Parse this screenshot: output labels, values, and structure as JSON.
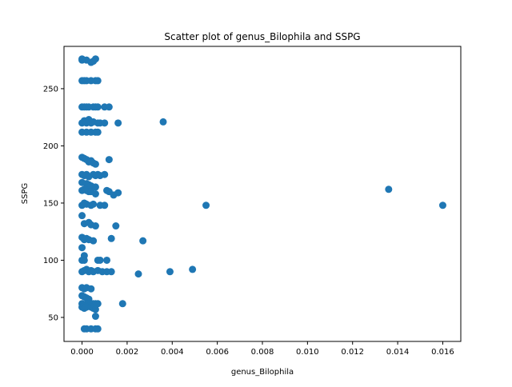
{
  "chart_data": {
    "type": "scatter",
    "title": "Scatter plot of genus_Bilophila and SSPG",
    "xlabel": "genus_Bilophila",
    "ylabel": "SSPG",
    "xlim": [
      -0.0008,
      0.0168
    ],
    "ylim": [
      29,
      287
    ],
    "x_ticks": [
      0.0,
      0.002,
      0.004,
      0.006,
      0.008,
      0.01,
      0.012,
      0.014,
      0.016
    ],
    "x_tick_labels": [
      "0.000",
      "0.002",
      "0.004",
      "0.006",
      "0.008",
      "0.010",
      "0.012",
      "0.014",
      "0.016"
    ],
    "y_ticks": [
      50,
      100,
      150,
      200,
      250
    ],
    "y_tick_labels": [
      "50",
      "100",
      "150",
      "200",
      "250"
    ],
    "grid": false,
    "marker_color": "#1f77b4",
    "series": [
      {
        "x": [
          0.0,
          0.0002,
          0.0004,
          0.0,
          0.0005,
          0.0006,
          0.0,
          0.0001,
          0.0002,
          0.0004,
          0.0006,
          0.0007,
          0.0,
          0.0001,
          0.0002,
          0.0003,
          0.0005,
          0.0006,
          0.0007,
          0.001,
          0.0012,
          0.0,
          0.0001,
          0.0002,
          0.0003,
          0.0004,
          0.0005,
          0.0007,
          0.0008,
          0.001,
          0.0016,
          0.0036,
          0.0,
          0.0002,
          0.0004,
          0.0006,
          0.0007,
          0.0,
          0.0001,
          0.0002,
          0.0003,
          0.0004,
          0.0005,
          0.0006,
          0.0012,
          0.0,
          0.0001,
          0.0002,
          0.0003,
          0.0005,
          0.0006,
          0.0007,
          0.0008,
          0.001,
          0.0,
          0.0002,
          0.0003,
          0.0004,
          0.0006,
          0.0,
          0.0001,
          0.0002,
          0.0003,
          0.0004,
          0.0006,
          0.0011,
          0.0012,
          0.0014,
          0.0016,
          0.0136,
          0.0,
          0.0001,
          0.0002,
          0.0004,
          0.0005,
          0.0008,
          0.001,
          0.0055,
          0.016,
          0.0,
          0.0001,
          0.0003,
          0.0004,
          0.0006,
          0.0015,
          0.0,
          0.0001,
          0.0002,
          0.0003,
          0.0005,
          0.0013,
          0.0027,
          0.0,
          0.0001,
          0.0,
          0.0001,
          0.0007,
          0.0008,
          0.0011,
          0.0,
          0.0001,
          0.0002,
          0.0003,
          0.0004,
          0.0005,
          0.0007,
          0.0009,
          0.0011,
          0.0013,
          0.0025,
          0.0039,
          0.0049,
          0.0,
          0.0001,
          0.0002,
          0.0004,
          0.0,
          0.0001,
          0.0002,
          0.0003,
          0.0,
          0.0002,
          0.0003,
          0.0004,
          0.0005,
          0.0006,
          0.0007,
          0.0018,
          0.0,
          0.0001,
          0.0002,
          0.0004,
          0.0005,
          0.0006,
          0.0006,
          0.0001,
          0.0002,
          0.0004,
          0.0006,
          0.0007
        ],
        "y": [
          275,
          275,
          273,
          276,
          274,
          276,
          257,
          257,
          257,
          257,
          257,
          257,
          234,
          234,
          234,
          234,
          234,
          234,
          234,
          234,
          234,
          220,
          222,
          220,
          223,
          220,
          221,
          220,
          220,
          220,
          220,
          221,
          212,
          212,
          212,
          212,
          212,
          190,
          189,
          188,
          186,
          187,
          185,
          184,
          188,
          175,
          174,
          175,
          173,
          175,
          174,
          175,
          174,
          175,
          168,
          167,
          166,
          165,
          164,
          161,
          162,
          161,
          160,
          160,
          158,
          161,
          160,
          157,
          159,
          162,
          148,
          150,
          149,
          148,
          149,
          148,
          148,
          148,
          148,
          139,
          132,
          133,
          131,
          130,
          130,
          120,
          118,
          119,
          118,
          117,
          119,
          117,
          111,
          104,
          100,
          100,
          100,
          100,
          100,
          90,
          91,
          92,
          90,
          91,
          90,
          91,
          90,
          90,
          90,
          88,
          90,
          92,
          76,
          75,
          76,
          75,
          69,
          68,
          67,
          66,
          62,
          62,
          62,
          62,
          62,
          62,
          62,
          62,
          59,
          58,
          59,
          59,
          58,
          57,
          51,
          40,
          40,
          40,
          40,
          40
        ]
      }
    ]
  }
}
